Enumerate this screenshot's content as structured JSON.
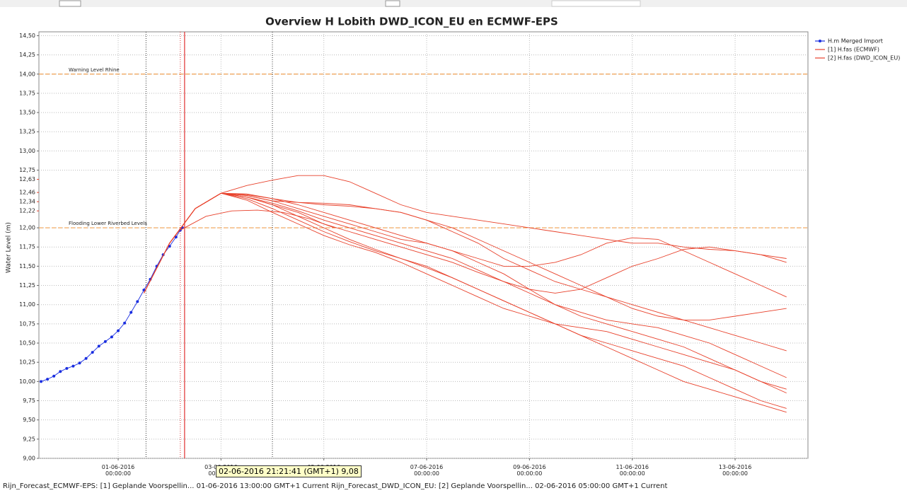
{
  "chart_data": {
    "type": "ensemble-line",
    "title": "Overview H Lobith DWD_ICON_EU en ECMWF-EPS",
    "y_label": "Water Level (m)",
    "xlim": [
      "2016-05-30T11:00",
      "2016-06-14T10:00"
    ],
    "xticks": [
      {
        "value": "2016-06-01T00:00",
        "label": "01-06-2016 00:00:00"
      },
      {
        "value": "2016-06-03T00:00",
        "label": "03-06-2016 00:00:00"
      },
      {
        "value": "2016-06-05T00:00",
        "label": "05-06-2016 00:00:00"
      },
      {
        "value": "2016-06-07T00:00",
        "label": "07-06-2016 00:00:00"
      },
      {
        "value": "2016-06-09T00:00",
        "label": "09-06-2016 00:00:00"
      },
      {
        "value": "2016-06-11T00:00",
        "label": "11-06-2016 00:00:00"
      },
      {
        "value": "2016-06-13T00:00",
        "label": "13-06-2016 00:00:00"
      }
    ],
    "ylim": [
      9.0,
      14.55
    ],
    "yticks": [
      {
        "value": 9.0,
        "label": "9,00"
      },
      {
        "value": 9.25,
        "label": "9,25"
      },
      {
        "value": 9.5,
        "label": "9,50"
      },
      {
        "value": 9.75,
        "label": "9,75"
      },
      {
        "value": 10.0,
        "label": "10,00"
      },
      {
        "value": 10.25,
        "label": "10,25"
      },
      {
        "value": 10.5,
        "label": "10,50"
      },
      {
        "value": 10.75,
        "label": "10,75"
      },
      {
        "value": 11.0,
        "label": "11,00"
      },
      {
        "value": 11.25,
        "label": "11,25"
      },
      {
        "value": 11.5,
        "label": "11,50"
      },
      {
        "value": 11.75,
        "label": "11,75"
      },
      {
        "value": 12.0,
        "label": "12,00"
      },
      {
        "value": 12.75,
        "label": "12,75"
      },
      {
        "value": 13.0,
        "label": "13,00"
      },
      {
        "value": 13.25,
        "label": "13,25"
      },
      {
        "value": 13.5,
        "label": "13,50"
      },
      {
        "value": 13.75,
        "label": "13,75"
      },
      {
        "value": 14.0,
        "label": "14,00"
      },
      {
        "value": 14.25,
        "label": "14,25"
      },
      {
        "value": 14.5,
        "label": "14,50"
      }
    ],
    "highlight_ticks": [
      {
        "value": 12.22,
        "label": "12,22"
      },
      {
        "value": 12.34,
        "label": "12,34"
      },
      {
        "value": 12.46,
        "label": "12,46"
      },
      {
        "value": 12.63,
        "label": "12,63"
      }
    ],
    "highlight_color": "#e8402a",
    "grid": true,
    "legend": "right",
    "thresholds": [
      {
        "value": 14.0,
        "label": "Warning Level Rhine"
      },
      {
        "value": 12.0,
        "label": "Flooding Lower Riverbed Levels"
      }
    ],
    "threshold_color": "#f0a050",
    "time_markers": [
      {
        "value": "2016-06-01T13:00",
        "color": "#333333",
        "style": "dotted"
      },
      {
        "value": "2016-06-02T05:00",
        "color": "#e03030",
        "style": "dotted"
      },
      {
        "value": "2016-06-02T07:00",
        "color": "#e03030",
        "style": "solid"
      },
      {
        "value": "2016-06-04T00:00",
        "color": "#333333",
        "style": "dotted"
      }
    ],
    "series": [
      {
        "name": "H.m  Merged Import",
        "color": "#1a2ee0",
        "markers": true,
        "x": [
          "2016-05-30T12:00",
          "2016-05-30T15:00",
          "2016-05-30T18:00",
          "2016-05-30T21:00",
          "2016-05-31T00:00",
          "2016-05-31T03:00",
          "2016-05-31T06:00",
          "2016-05-31T09:00",
          "2016-05-31T12:00",
          "2016-05-31T15:00",
          "2016-05-31T18:00",
          "2016-05-31T21:00",
          "2016-06-01T00:00",
          "2016-06-01T03:00",
          "2016-06-01T06:00",
          "2016-06-01T09:00",
          "2016-06-01T12:00",
          "2016-06-01T15:00",
          "2016-06-01T18:00",
          "2016-06-01T21:00",
          "2016-06-02T00:00",
          "2016-06-02T03:00",
          "2016-06-02T05:00",
          "2016-06-02T06:00"
        ],
        "values": [
          10.0,
          10.03,
          10.07,
          10.13,
          10.17,
          10.2,
          10.24,
          10.3,
          10.38,
          10.46,
          10.52,
          10.58,
          10.66,
          10.76,
          10.9,
          11.04,
          11.19,
          11.33,
          11.5,
          11.65,
          11.76,
          11.88,
          11.97,
          12.0
        ]
      },
      {
        "name": "[1] H.fas  (ECMWF)",
        "color": "#e8402a",
        "markers": false,
        "x": [
          "2016-06-01T12:00",
          "2016-06-02T00:00",
          "2016-06-02T12:00",
          "2016-06-03T00:00",
          "2016-06-03T12:00",
          "2016-06-04T00:00",
          "2016-06-04T12:00",
          "2016-06-05T00:00",
          "2016-06-05T12:00",
          "2016-06-06T00:00",
          "2016-06-06T12:00",
          "2016-06-07T00:00",
          "2016-06-07T12:00",
          "2016-06-08T00:00",
          "2016-06-08T12:00",
          "2016-06-09T00:00",
          "2016-06-09T12:00",
          "2016-06-10T00:00",
          "2016-06-10T12:00",
          "2016-06-11T00:00",
          "2016-06-11T12:00",
          "2016-06-12T00:00",
          "2016-06-12T12:00",
          "2016-06-13T00:00",
          "2016-06-13T12:00",
          "2016-06-14T00:00"
        ],
        "members": [
          [
            11.15,
            11.8,
            12.25,
            12.45,
            12.55,
            12.62,
            12.68,
            12.68,
            12.6,
            12.45,
            12.3,
            12.2,
            12.15,
            12.1,
            12.05,
            12.0,
            11.95,
            11.9,
            11.85,
            11.8,
            11.8,
            11.75,
            11.72,
            11.7,
            11.65,
            11.6
          ],
          [
            11.15,
            11.8,
            12.25,
            12.45,
            12.44,
            12.38,
            12.3,
            12.2,
            12.1,
            12.0,
            11.9,
            11.8,
            11.7,
            11.6,
            11.5,
            11.5,
            11.55,
            11.65,
            11.8,
            11.87,
            11.85,
            11.7,
            11.55,
            11.4,
            11.25,
            11.1
          ],
          [
            11.15,
            11.8,
            12.25,
            12.45,
            12.42,
            12.35,
            12.33,
            12.32,
            12.3,
            12.25,
            12.2,
            12.1,
            11.95,
            11.8,
            11.6,
            11.45,
            11.3,
            11.2,
            11.1,
            11.0,
            10.9,
            10.8,
            10.7,
            10.6,
            10.5,
            10.4
          ],
          [
            11.15,
            11.8,
            12.25,
            12.45,
            12.4,
            12.3,
            12.2,
            12.05,
            11.95,
            11.85,
            11.75,
            11.65,
            11.55,
            11.42,
            11.3,
            11.15,
            11.0,
            10.85,
            10.75,
            10.65,
            10.55,
            10.45,
            10.3,
            10.15,
            10.0,
            9.85
          ],
          [
            11.15,
            11.8,
            12.25,
            12.45,
            12.38,
            12.25,
            12.1,
            11.95,
            11.82,
            11.7,
            11.6,
            11.5,
            11.35,
            11.2,
            11.05,
            10.9,
            10.75,
            10.6,
            10.45,
            10.3,
            10.15,
            10.0,
            9.9,
            9.8,
            9.7,
            9.6
          ],
          [
            11.15,
            11.8,
            12.25,
            12.45,
            12.42,
            12.35,
            12.25,
            12.15,
            12.05,
            11.95,
            11.85,
            11.8,
            11.7,
            11.55,
            11.4,
            11.2,
            11.0,
            10.9,
            10.8,
            10.75,
            10.7,
            10.6,
            10.5,
            10.35,
            10.2,
            10.05
          ],
          [
            11.15,
            11.8,
            12.25,
            12.45,
            12.4,
            12.32,
            12.22,
            12.1,
            12.0,
            11.9,
            11.8,
            11.7,
            11.6,
            11.45,
            11.3,
            11.2,
            11.15,
            11.2,
            11.35,
            11.5,
            11.6,
            11.72,
            11.75,
            11.7,
            11.65,
            11.55
          ],
          [
            11.15,
            11.8,
            12.25,
            12.45,
            12.36,
            12.2,
            12.05,
            11.9,
            11.78,
            11.68,
            11.55,
            11.4,
            11.25,
            11.1,
            10.95,
            10.85,
            10.75,
            10.7,
            10.65,
            10.55,
            10.45,
            10.35,
            10.25,
            10.15,
            10.0,
            9.9
          ],
          [
            11.15,
            11.8,
            12.25,
            12.45,
            12.43,
            12.38,
            12.33,
            12.3,
            12.28,
            12.25,
            12.2,
            12.1,
            12.0,
            11.85,
            11.7,
            11.55,
            11.4,
            11.25,
            11.1,
            10.95,
            10.85,
            10.8,
            10.8,
            10.85,
            10.9,
            10.95
          ],
          [
            11.15,
            11.8,
            12.25,
            12.45,
            12.4,
            12.3,
            12.15,
            12.0,
            11.85,
            11.72,
            11.6,
            11.48,
            11.35,
            11.2,
            11.05,
            10.9,
            10.75,
            10.6,
            10.5,
            10.4,
            10.3,
            10.2,
            10.05,
            9.9,
            9.75,
            9.65
          ]
        ]
      },
      {
        "name": "[2] H.fas  (DWD_ICON_EU)",
        "color": "#e8402a",
        "markers": false,
        "x": [
          "2016-06-02T05:00",
          "2016-06-02T17:00",
          "2016-06-03T05:00",
          "2016-06-03T17:00",
          "2016-06-04T05:00",
          "2016-06-04T17:00",
          "2016-06-05T05:00"
        ],
        "values": [
          11.97,
          12.15,
          12.22,
          12.23,
          12.2,
          12.12,
          12.0
        ]
      }
    ],
    "tooltip": "02-06-2016 21:21:41 (GMT+1) 9,08",
    "footer": "Rijn_Forecast_ECMWF-EPS: [1] Geplande Voorspellin... 01-06-2016 13:00:00 GMT+1 Current Rijn_Forecast_DWD_ICON_EU: [2] Geplande Voorspellin... 02-06-2016 05:00:00 GMT+1 Current"
  }
}
